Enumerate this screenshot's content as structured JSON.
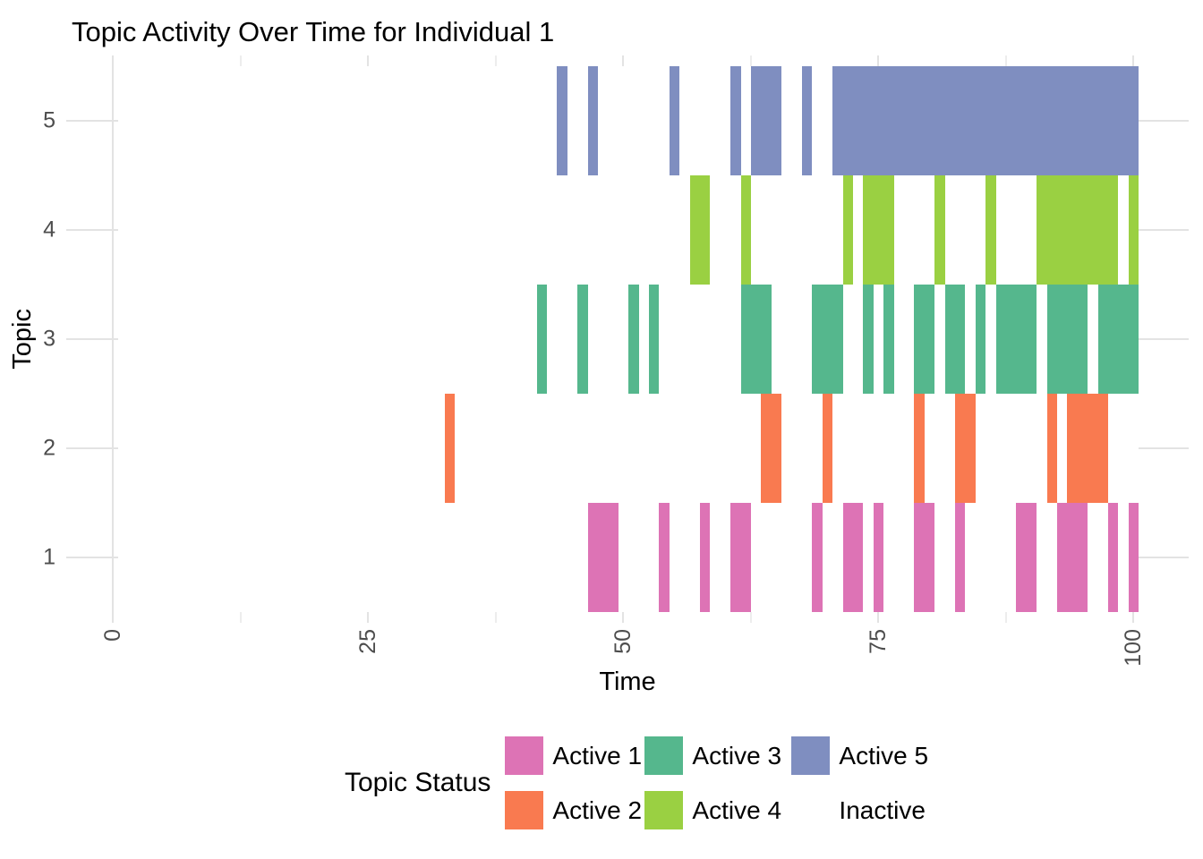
{
  "chart_data": {
    "type": "gantt-tile-timeline",
    "title": "Topic Activity Over Time for Individual 1",
    "xlabel": "Time",
    "ylabel": "Topic",
    "xlim": [
      -4.6,
      105.4
    ],
    "ylim": [
      0.4,
      5.6
    ],
    "x_tick_values": [
      0,
      25,
      50,
      75,
      100
    ],
    "x_tick_labels": [
      "0",
      "25",
      "50",
      "75",
      "100"
    ],
    "x_minor_ticks": [
      12.5,
      37.5,
      62.5,
      87.5
    ],
    "y_tick_values": [
      1,
      2,
      3,
      4,
      5
    ],
    "y_tick_labels": [
      "1",
      "2",
      "3",
      "4",
      "5"
    ],
    "grid": true,
    "background": "#ffffff",
    "tile_width": 1,
    "covered_x_range": [
      0.5,
      100.5
    ],
    "series": [
      {
        "topic": 1,
        "name": "Active 1",
        "color": "#DD73B5",
        "active_intervals": [
          [
            47,
            49
          ],
          [
            54,
            54
          ],
          [
            58,
            58
          ],
          [
            61,
            62
          ],
          [
            69,
            69
          ],
          [
            72,
            73
          ],
          [
            75,
            75
          ],
          [
            79,
            80
          ],
          [
            83,
            83
          ],
          [
            89,
            90
          ],
          [
            93,
            95
          ],
          [
            98,
            98
          ],
          [
            100,
            100
          ]
        ]
      },
      {
        "topic": 2,
        "name": "Active 2",
        "color": "#F97A50",
        "active_intervals": [
          [
            33,
            33
          ],
          [
            64,
            65
          ],
          [
            70,
            70
          ],
          [
            79,
            79
          ],
          [
            83,
            84
          ],
          [
            92,
            92
          ],
          [
            94,
            97
          ]
        ]
      },
      {
        "topic": 3,
        "name": "Active 3",
        "color": "#55B78D",
        "active_intervals": [
          [
            42,
            42
          ],
          [
            46,
            46
          ],
          [
            51,
            51
          ],
          [
            53,
            53
          ],
          [
            62,
            64
          ],
          [
            69,
            71
          ],
          [
            74,
            74
          ],
          [
            76,
            76
          ],
          [
            79,
            80
          ],
          [
            82,
            83
          ],
          [
            85,
            85
          ],
          [
            87,
            90
          ],
          [
            92,
            95
          ],
          [
            97,
            100
          ]
        ]
      },
      {
        "topic": 4,
        "name": "Active 4",
        "color": "#9AD042",
        "active_intervals": [
          [
            57,
            58
          ],
          [
            62,
            62
          ],
          [
            72,
            72
          ],
          [
            74,
            76
          ],
          [
            81,
            81
          ],
          [
            86,
            86
          ],
          [
            91,
            98
          ],
          [
            100,
            100
          ]
        ]
      },
      {
        "topic": 5,
        "name": "Active 5",
        "color": "#7F8EC0",
        "active_intervals": [
          [
            44,
            44
          ],
          [
            47,
            47
          ],
          [
            55,
            55
          ],
          [
            61,
            61
          ],
          [
            63,
            65
          ],
          [
            68,
            68
          ],
          [
            71,
            100
          ]
        ]
      }
    ],
    "legend": {
      "title": "Topic Status",
      "position": "bottom",
      "entries": [
        {
          "label": "Active 1",
          "color": "#DD73B5"
        },
        {
          "label": "Active 3",
          "color": "#55B78D"
        },
        {
          "label": "Active 5",
          "color": "#7F8EC0"
        },
        {
          "label": "Active 2",
          "color": "#F97A50"
        },
        {
          "label": "Active 4",
          "color": "#9AD042"
        },
        {
          "label": "Inactive",
          "color": "#FFFFFF"
        }
      ]
    }
  }
}
